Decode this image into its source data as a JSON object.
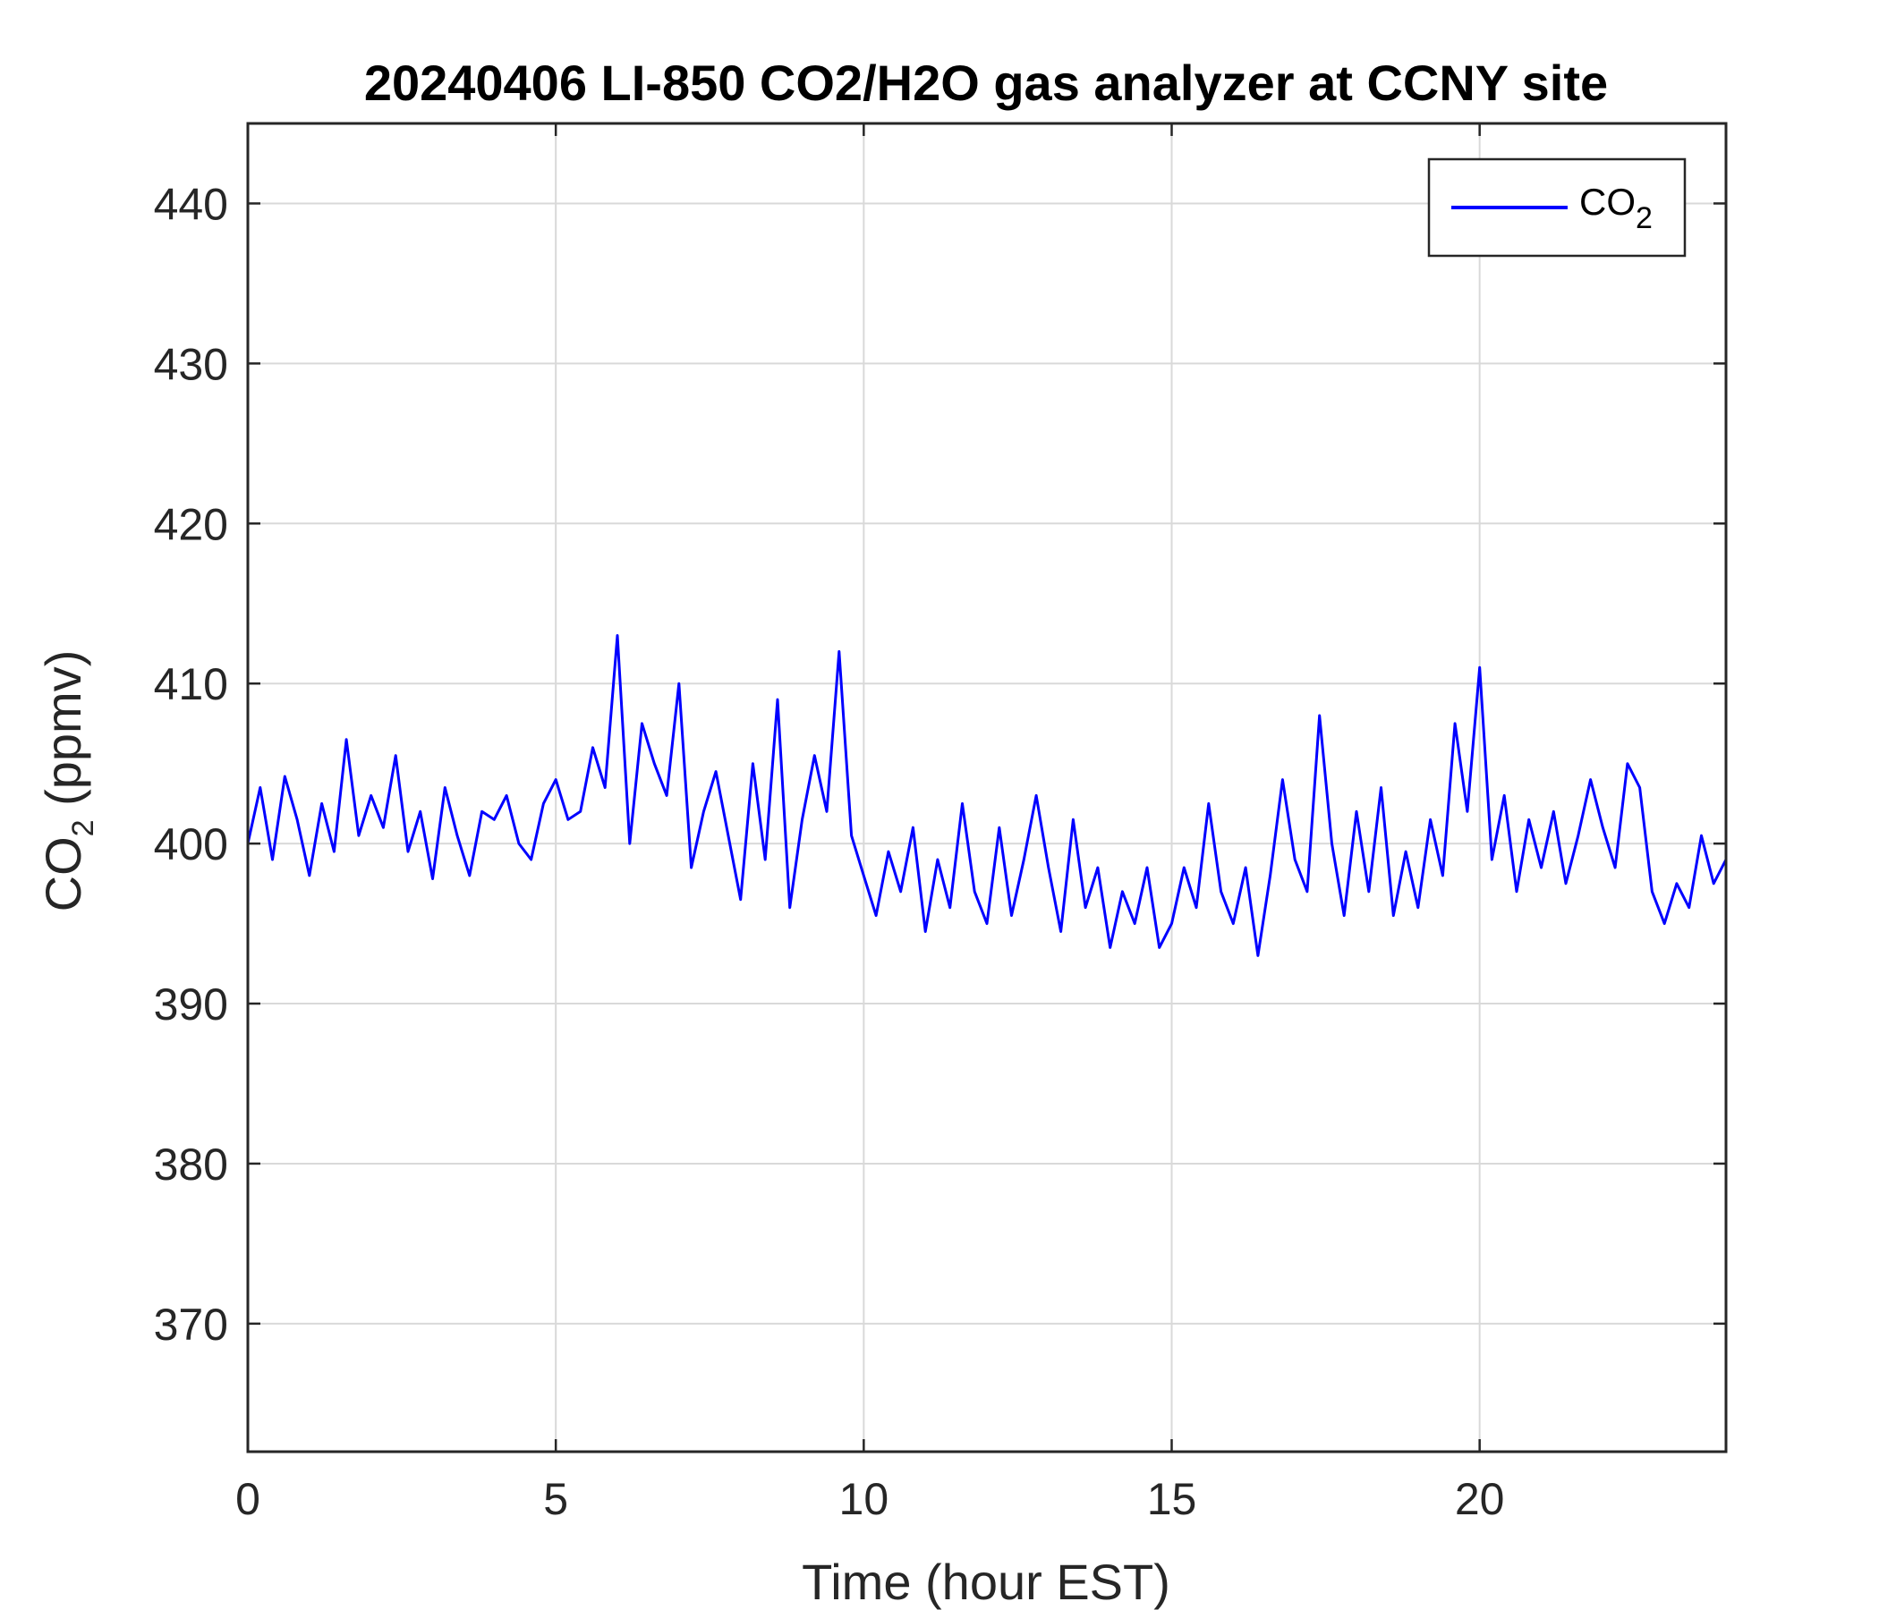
{
  "chart_data": {
    "type": "line",
    "title": "20240406 LI-850 CO2/H2O gas analyzer at CCNY site",
    "xlabel": "Time (hour EST)",
    "ylabel": {
      "main": "CO",
      "sub": "2",
      "suffix": " (ppmv)"
    },
    "xlim": [
      0,
      24
    ],
    "ylim": [
      362,
      445
    ],
    "xticks": [
      0,
      5,
      10,
      15,
      20
    ],
    "yticks": [
      370,
      380,
      390,
      400,
      410,
      420,
      430,
      440
    ],
    "grid": true,
    "legend": {
      "position": "top-right",
      "label_main": "CO",
      "label_sub": "2"
    },
    "series": [
      {
        "name": "CO2",
        "color": "#0000ff",
        "x": [
          0.0,
          0.2,
          0.4,
          0.6,
          0.8,
          1.0,
          1.2,
          1.4,
          1.6,
          1.8,
          2.0,
          2.2,
          2.4,
          2.6,
          2.8,
          3.0,
          3.2,
          3.4,
          3.6,
          3.8,
          4.0,
          4.2,
          4.4,
          4.6,
          4.8,
          5.0,
          5.2,
          5.4,
          5.6,
          5.8,
          6.0,
          6.2,
          6.4,
          6.6,
          6.8,
          7.0,
          7.2,
          7.4,
          7.6,
          7.8,
          8.0,
          8.2,
          8.4,
          8.6,
          8.8,
          9.0,
          9.2,
          9.4,
          9.6,
          9.8,
          10.0,
          10.2,
          10.4,
          10.6,
          10.8,
          11.0,
          11.2,
          11.4,
          11.6,
          11.8,
          12.0,
          12.2,
          12.4,
          12.6,
          12.8,
          13.0,
          13.2,
          13.4,
          13.6,
          13.8,
          14.0,
          14.2,
          14.4,
          14.6,
          14.8,
          15.0,
          15.2,
          15.4,
          15.6,
          15.8,
          16.0,
          16.2,
          16.4,
          16.6,
          16.8,
          17.0,
          17.2,
          17.4,
          17.6,
          17.8,
          18.0,
          18.2,
          18.4,
          18.6,
          18.8,
          19.0,
          19.2,
          19.4,
          19.6,
          19.8,
          20.0,
          20.2,
          20.4,
          20.6,
          20.8,
          21.0,
          21.2,
          21.4,
          21.6,
          21.8,
          22.0,
          22.2,
          22.4,
          22.6,
          22.8,
          23.0,
          23.2,
          23.4,
          23.6,
          23.8,
          24.0
        ],
        "y": [
          400.0,
          403.5,
          399.0,
          404.2,
          401.5,
          398.0,
          402.5,
          399.5,
          406.5,
          400.5,
          403.0,
          401.0,
          405.5,
          399.5,
          402.0,
          397.8,
          403.5,
          400.5,
          398.0,
          402.0,
          401.5,
          403.0,
          400.0,
          399.0,
          402.5,
          404.0,
          401.5,
          402.0,
          406.0,
          403.5,
          413.0,
          400.0,
          407.5,
          405.0,
          403.0,
          410.0,
          398.5,
          402.0,
          404.5,
          400.5,
          396.5,
          405.0,
          399.0,
          409.0,
          396.0,
          401.5,
          405.5,
          402.0,
          412.0,
          400.5,
          398.0,
          395.5,
          399.5,
          397.0,
          401.0,
          394.5,
          399.0,
          396.0,
          402.5,
          397.0,
          395.0,
          401.0,
          395.5,
          399.0,
          403.0,
          398.5,
          394.5,
          401.5,
          396.0,
          398.5,
          393.5,
          397.0,
          395.0,
          398.5,
          393.5,
          395.0,
          398.5,
          396.0,
          402.5,
          397.0,
          395.0,
          398.5,
          393.0,
          398.0,
          404.0,
          399.0,
          397.0,
          408.0,
          400.0,
          395.5,
          402.0,
          397.0,
          403.5,
          395.5,
          399.5,
          396.0,
          401.5,
          398.0,
          407.5,
          402.0,
          411.0,
          399.0,
          403.0,
          397.0,
          401.5,
          398.5,
          402.0,
          397.5,
          400.5,
          404.0,
          401.0,
          398.5,
          405.0,
          403.5,
          397.0,
          395.0,
          397.5,
          396.0,
          400.5,
          397.5,
          399.0
        ]
      }
    ]
  }
}
